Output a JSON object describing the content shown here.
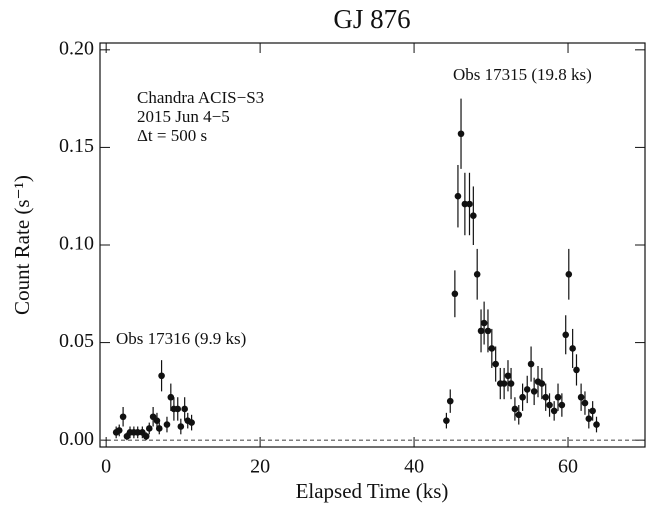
{
  "chart_data": {
    "type": "scatter",
    "title": "GJ 876",
    "xlabel": "Elapsed Time (ks)",
    "ylabel": "Count Rate (s⁻¹)",
    "annotations": [
      "Chandra ACIS−S3",
      "2015 Jun 4−5",
      "Δt = 500 s",
      "Obs 17316 (9.9 ks)",
      "Obs 17315 (19.8 ks)"
    ],
    "xlim": [
      -0.8,
      70
    ],
    "ylim": [
      -0.0035,
      0.2035
    ],
    "xticks": [
      0,
      20,
      40,
      60
    ],
    "yticks": [
      {
        "value": 0,
        "label": "0.00"
      },
      0.05,
      {
        "value": 0.1,
        "label": "0.10"
      },
      0.15,
      {
        "value": 0.2,
        "label": "0.20"
      }
    ],
    "reference_line": 0,
    "series": [
      {
        "color": "#111111",
        "x": [
          1.3,
          1.7,
          2.2,
          2.7,
          3.1,
          3.6,
          4.1,
          4.7,
          5.2,
          5.6,
          6.1,
          6.6,
          6.9,
          7.2,
          7.9,
          8.4,
          8.8,
          9.3,
          9.7,
          10.2,
          10.6,
          11.1,
          44.2,
          44.7,
          45.3,
          45.7,
          46.1,
          46.6,
          47.2,
          47.7,
          48.2,
          48.7,
          49.1,
          49.6,
          50.1,
          50.6,
          51.2,
          51.7,
          52.2,
          52.6,
          53.1,
          53.6,
          54.1,
          54.7,
          55.2,
          55.6,
          56.1,
          56.6,
          57.1,
          57.6,
          58.2,
          58.7,
          59.2,
          59.7,
          60.1,
          60.6,
          61.1,
          61.7,
          62.2,
          62.7,
          63.2,
          63.7
        ],
        "values": [
          0.004,
          0.005,
          0.012,
          0.002,
          0.004,
          0.004,
          0.004,
          0.004,
          0.002,
          0.006,
          0.012,
          0.01,
          0.006,
          0.033,
          0.008,
          0.022,
          0.016,
          0.016,
          0.007,
          0.016,
          0.01,
          0.009,
          0.01,
          0.02,
          0.075,
          0.125,
          0.157,
          0.121,
          0.121,
          0.115,
          0.085,
          0.056,
          0.06,
          0.056,
          0.047,
          0.039,
          0.029,
          0.029,
          0.033,
          0.029,
          0.016,
          0.013,
          0.022,
          0.026,
          0.039,
          0.025,
          0.03,
          0.029,
          0.022,
          0.018,
          0.015,
          0.022,
          0.018,
          0.054,
          0.085,
          0.047,
          0.036,
          0.022,
          0.019,
          0.011,
          0.015,
          0.008
        ],
        "errors": [
          0.003,
          0.003,
          0.005,
          0.002,
          0.003,
          0.003,
          0.003,
          0.003,
          0.002,
          0.003,
          0.005,
          0.004,
          0.003,
          0.008,
          0.004,
          0.007,
          0.006,
          0.006,
          0.004,
          0.006,
          0.004,
          0.004,
          0.004,
          0.006,
          0.012,
          0.016,
          0.018,
          0.016,
          0.016,
          0.015,
          0.013,
          0.011,
          0.011,
          0.011,
          0.01,
          0.009,
          0.008,
          0.008,
          0.008,
          0.008,
          0.006,
          0.005,
          0.007,
          0.007,
          0.009,
          0.007,
          0.008,
          0.008,
          0.007,
          0.006,
          0.005,
          0.007,
          0.006,
          0.01,
          0.013,
          0.01,
          0.008,
          0.007,
          0.006,
          0.005,
          0.005,
          0.004
        ]
      }
    ]
  }
}
